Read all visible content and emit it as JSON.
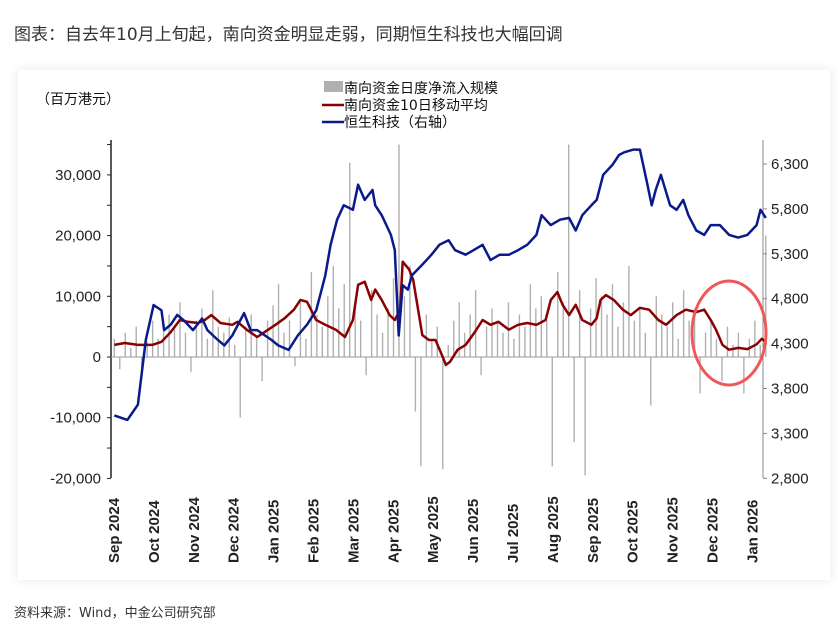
{
  "title": "图表：自去年10月上旬起，南向资金明显走弱，同期恒生科技也大幅回调",
  "source": "资料来源：Wind，中金公司研究部",
  "chart_data": {
    "type": "bar+line",
    "unit_label": "（百万港元）",
    "legend": [
      "南向资金日度净流入规模",
      "南向资金10日移动平均",
      "恒生科技（右轴）"
    ],
    "legend_placement": "top-center",
    "colors": {
      "bars": "#b0b0b0",
      "ma": "#8b0000",
      "hstech": "#0a1a8c",
      "negative_tick": "#e0282e",
      "highlight": "#f0575a"
    },
    "y_left": {
      "range": [
        -20000,
        35000
      ],
      "ticks": [
        "30,000",
        "20,000",
        "10,000",
        "0",
        "-10,000",
        "-20,000"
      ],
      "tick_values": [
        30000,
        20000,
        10000,
        0,
        -10000,
        -20000
      ]
    },
    "y_right": {
      "range": [
        2800,
        6600
      ],
      "ticks": [
        "6,300",
        "5,800",
        "5,300",
        "4,800",
        "4,300",
        "3,800",
        "3,300",
        "2,800"
      ],
      "tick_values": [
        6300,
        5800,
        5300,
        4800,
        4300,
        3800,
        3300,
        2800
      ]
    },
    "x_ticks": [
      "Sep 2024",
      "Oct 2024",
      "Nov 2024",
      "Dec 2024",
      "Jan 2025",
      "Feb 2025",
      "Mar 2025",
      "Apr 2025",
      "May 2025",
      "Jun 2025",
      "Jul 2025",
      "Aug 2025",
      "Sep 2025",
      "Oct 2025",
      "Nov 2025",
      "Dec 2025",
      "Jan 2026"
    ],
    "x_range": [
      "2024-09-02",
      "2026-01-12"
    ],
    "highlight": "Dec 2025 – Jan 2026",
    "bars": [
      3000,
      -2000,
      4000,
      1500,
      5000,
      -3500,
      2500,
      6000,
      3000,
      4500,
      7000,
      5000,
      9000,
      4000,
      -2500,
      6000,
      8000,
      3000,
      11000,
      5000,
      4000,
      6500,
      2000,
      -10000,
      5000,
      7000,
      3500,
      -4000,
      6000,
      8500,
      12000,
      4000,
      6000,
      -1500,
      9000,
      3000,
      14000,
      7000,
      5000,
      10000,
      15000,
      8000,
      12000,
      32000,
      9000,
      6000,
      -3000,
      11000,
      7000,
      4000,
      8000,
      13000,
      35000,
      10000,
      15000,
      -9000,
      -18000,
      7000,
      3000,
      5000,
      -18500,
      2000,
      6000,
      9000,
      4000,
      7000,
      11000,
      -3000,
      5000,
      8000,
      6000,
      4000,
      9000,
      3000,
      7000,
      5000,
      12000,
      8000,
      10000,
      6000,
      -18000,
      14000,
      9000,
      35000,
      -14000,
      11000,
      -19500,
      8000,
      13000,
      10000,
      7000,
      12000,
      5000,
      9000,
      15000,
      6000,
      8000,
      4000,
      -8000,
      10000,
      7000,
      5000,
      9000,
      3000,
      11000,
      6000,
      8000,
      -6000,
      4000,
      6000,
      3000,
      -4000,
      5000,
      2000,
      4000,
      -6000,
      3000,
      6000,
      2000,
      20000
    ],
    "ma10": [
      [
        "2024-09-02",
        2000
      ],
      [
        "2024-09-10",
        2300
      ],
      [
        "2024-09-20",
        2000
      ],
      [
        "2024-10-01",
        2000
      ],
      [
        "2024-10-08",
        2500
      ],
      [
        "2024-10-15",
        4100
      ],
      [
        "2024-10-22",
        6100
      ],
      [
        "2024-10-28",
        5800
      ],
      [
        "2024-11-05",
        5600
      ],
      [
        "2024-11-10",
        6100
      ],
      [
        "2024-11-15",
        6900
      ],
      [
        "2024-11-22",
        5600
      ],
      [
        "2024-12-01",
        5300
      ],
      [
        "2024-12-05",
        5800
      ],
      [
        "2024-12-12",
        4500
      ],
      [
        "2024-12-20",
        3300
      ],
      [
        "2024-12-25",
        4000
      ],
      [
        "2025-01-03",
        5300
      ],
      [
        "2025-01-10",
        6400
      ],
      [
        "2025-01-17",
        7800
      ],
      [
        "2025-01-22",
        9400
      ],
      [
        "2025-01-27",
        9100
      ],
      [
        "2025-02-03",
        6100
      ],
      [
        "2025-02-10",
        5300
      ],
      [
        "2025-02-18",
        4500
      ],
      [
        "2025-02-25",
        3300
      ],
      [
        "2025-03-03",
        6100
      ],
      [
        "2025-03-07",
        11900
      ],
      [
        "2025-03-12",
        12400
      ],
      [
        "2025-03-17",
        9400
      ],
      [
        "2025-03-20",
        11100
      ],
      [
        "2025-03-25",
        9400
      ],
      [
        "2025-03-31",
        6900
      ],
      [
        "2025-04-04",
        6100
      ],
      [
        "2025-04-08",
        7800
      ],
      [
        "2025-04-10",
        15700
      ],
      [
        "2025-04-15",
        14400
      ],
      [
        "2025-04-18",
        12700
      ],
      [
        "2025-04-25",
        3600
      ],
      [
        "2025-04-30",
        2800
      ],
      [
        "2025-05-05",
        2800
      ],
      [
        "2025-05-10",
        300
      ],
      [
        "2025-05-13",
        -1300
      ],
      [
        "2025-05-16",
        -800
      ],
      [
        "2025-05-22",
        1200
      ],
      [
        "2025-05-28",
        2000
      ],
      [
        "2025-06-04",
        4100
      ],
      [
        "2025-06-10",
        6100
      ],
      [
        "2025-06-16",
        5300
      ],
      [
        "2025-06-22",
        5800
      ],
      [
        "2025-06-30",
        4500
      ],
      [
        "2025-07-07",
        5300
      ],
      [
        "2025-07-14",
        5600
      ],
      [
        "2025-07-21",
        5300
      ],
      [
        "2025-07-28",
        6100
      ],
      [
        "2025-08-01",
        9400
      ],
      [
        "2025-08-06",
        10700
      ],
      [
        "2025-08-10",
        8600
      ],
      [
        "2025-08-15",
        6900
      ],
      [
        "2025-08-20",
        8600
      ],
      [
        "2025-08-25",
        6100
      ],
      [
        "2025-09-01",
        5300
      ],
      [
        "2025-09-05",
        6400
      ],
      [
        "2025-09-08",
        9400
      ],
      [
        "2025-09-12",
        10200
      ],
      [
        "2025-09-18",
        9400
      ],
      [
        "2025-09-25",
        7800
      ],
      [
        "2025-10-01",
        6900
      ],
      [
        "2025-10-08",
        8100
      ],
      [
        "2025-10-15",
        7800
      ],
      [
        "2025-10-22",
        6100
      ],
      [
        "2025-10-28",
        5300
      ],
      [
        "2025-11-05",
        6900
      ],
      [
        "2025-11-12",
        7800
      ],
      [
        "2025-11-20",
        7400
      ],
      [
        "2025-11-26",
        7800
      ],
      [
        "2025-12-01",
        6100
      ],
      [
        "2025-12-05",
        4500
      ],
      [
        "2025-12-10",
        2000
      ],
      [
        "2025-12-15",
        1200
      ],
      [
        "2025-12-22",
        1500
      ],
      [
        "2025-12-29",
        1300
      ],
      [
        "2026-01-05",
        2100
      ],
      [
        "2026-01-09",
        3000
      ],
      [
        "2026-01-12",
        2500
      ]
    ],
    "hstech": [
      [
        "2024-09-02",
        3500
      ],
      [
        "2024-09-12",
        3450
      ],
      [
        "2024-09-20",
        3620
      ],
      [
        "2024-09-26",
        4340
      ],
      [
        "2024-10-02",
        4730
      ],
      [
        "2024-10-08",
        4670
      ],
      [
        "2024-10-10",
        4450
      ],
      [
        "2024-10-15",
        4510
      ],
      [
        "2024-10-20",
        4620
      ],
      [
        "2024-10-25",
        4560
      ],
      [
        "2024-11-01",
        4450
      ],
      [
        "2024-11-08",
        4580
      ],
      [
        "2024-11-12",
        4450
      ],
      [
        "2024-11-20",
        4340
      ],
      [
        "2024-11-25",
        4280
      ],
      [
        "2024-12-01",
        4390
      ],
      [
        "2024-12-10",
        4640
      ],
      [
        "2024-12-15",
        4450
      ],
      [
        "2024-12-20",
        4450
      ],
      [
        "2024-12-31",
        4340
      ],
      [
        "2025-01-05",
        4280
      ],
      [
        "2025-01-13",
        4230
      ],
      [
        "2025-01-20",
        4390
      ],
      [
        "2025-01-27",
        4510
      ],
      [
        "2025-02-03",
        4670
      ],
      [
        "2025-02-10",
        5060
      ],
      [
        "2025-02-14",
        5400
      ],
      [
        "2025-02-19",
        5680
      ],
      [
        "2025-02-24",
        5840
      ],
      [
        "2025-03-03",
        5790
      ],
      [
        "2025-03-07",
        6070
      ],
      [
        "2025-03-12",
        5900
      ],
      [
        "2025-03-18",
        6010
      ],
      [
        "2025-03-20",
        5840
      ],
      [
        "2025-03-25",
        5730
      ],
      [
        "2025-04-01",
        5510
      ],
      [
        "2025-04-04",
        5340
      ],
      [
        "2025-04-07",
        4390
      ],
      [
        "2025-04-10",
        4950
      ],
      [
        "2025-04-14",
        4900
      ],
      [
        "2025-04-17",
        5060
      ],
      [
        "2025-04-25",
        5180
      ],
      [
        "2025-05-02",
        5290
      ],
      [
        "2025-05-08",
        5400
      ],
      [
        "2025-05-15",
        5450
      ],
      [
        "2025-05-20",
        5340
      ],
      [
        "2025-05-28",
        5290
      ],
      [
        "2025-06-03",
        5340
      ],
      [
        "2025-06-10",
        5400
      ],
      [
        "2025-06-16",
        5230
      ],
      [
        "2025-06-23",
        5290
      ],
      [
        "2025-06-30",
        5290
      ],
      [
        "2025-07-07",
        5340
      ],
      [
        "2025-07-14",
        5400
      ],
      [
        "2025-07-21",
        5510
      ],
      [
        "2025-07-25",
        5730
      ],
      [
        "2025-08-01",
        5620
      ],
      [
        "2025-08-08",
        5680
      ],
      [
        "2025-08-15",
        5700
      ],
      [
        "2025-08-20",
        5560
      ],
      [
        "2025-08-25",
        5730
      ],
      [
        "2025-09-01",
        5840
      ],
      [
        "2025-09-05",
        5900
      ],
      [
        "2025-09-10",
        6180
      ],
      [
        "2025-09-17",
        6290
      ],
      [
        "2025-09-22",
        6400
      ],
      [
        "2025-09-26",
        6430
      ],
      [
        "2025-10-03",
        6460
      ],
      [
        "2025-10-08",
        6460
      ],
      [
        "2025-10-13",
        6120
      ],
      [
        "2025-10-17",
        5840
      ],
      [
        "2025-10-20",
        6010
      ],
      [
        "2025-10-24",
        6180
      ],
      [
        "2025-10-31",
        5840
      ],
      [
        "2025-11-05",
        5790
      ],
      [
        "2025-11-10",
        5900
      ],
      [
        "2025-11-14",
        5730
      ],
      [
        "2025-11-20",
        5560
      ],
      [
        "2025-11-26",
        5510
      ],
      [
        "2025-12-01",
        5620
      ],
      [
        "2025-12-08",
        5620
      ],
      [
        "2025-12-15",
        5510
      ],
      [
        "2025-12-22",
        5480
      ],
      [
        "2025-12-29",
        5510
      ],
      [
        "2026-01-05",
        5620
      ],
      [
        "2026-01-08",
        5790
      ],
      [
        "2026-01-12",
        5700
      ]
    ]
  }
}
